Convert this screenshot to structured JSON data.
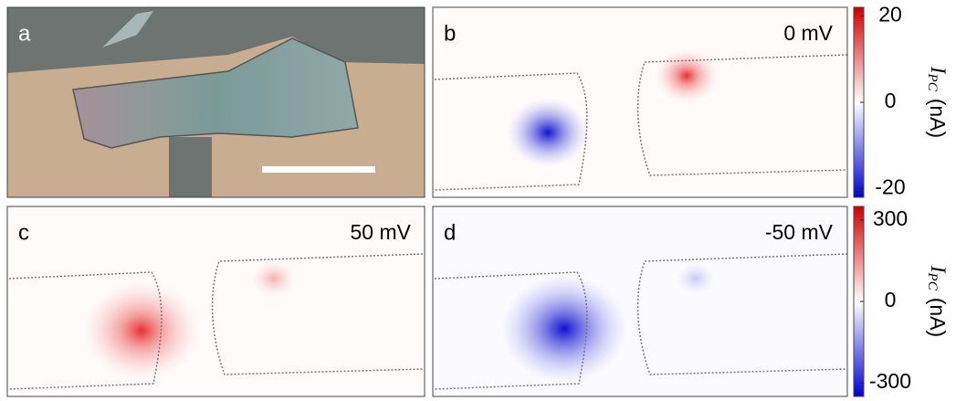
{
  "panels": [
    {
      "label": "a"
    },
    {
      "label": "b",
      "bias": "0 mV"
    },
    {
      "label": "c",
      "bias": "50 mV"
    },
    {
      "label": "d",
      "bias": "-50 mV"
    }
  ],
  "colorbars": [
    {
      "range": [
        -22,
        22
      ],
      "ticks": [
        20,
        0,
        -20
      ],
      "label": {
        "symbol": "I",
        "subscript": "PC",
        "unit": "(nA)"
      }
    },
    {
      "range": [
        -350,
        350
      ],
      "ticks": [
        300,
        0,
        -300
      ],
      "label": {
        "symbol": "I",
        "subscript": "PC",
        "unit": "(nA)"
      }
    }
  ]
}
